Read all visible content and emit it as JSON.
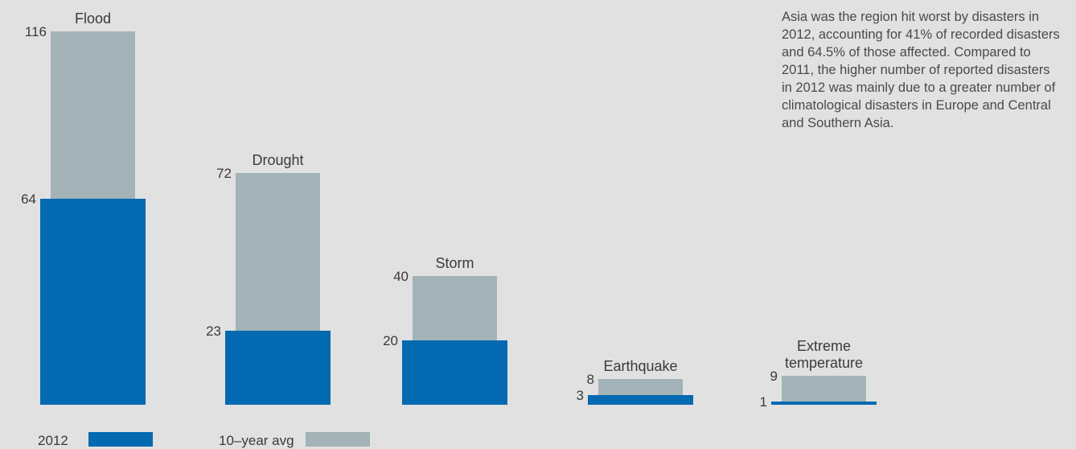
{
  "chart_data": {
    "type": "bar",
    "categories": [
      [
        "Flood"
      ],
      [
        "Drought"
      ],
      [
        "Storm"
      ],
      [
        "Earthquake"
      ],
      [
        "Extreme",
        "temperature"
      ]
    ],
    "series": [
      {
        "name": "10–year avg",
        "values": [
          116,
          72,
          40,
          8,
          9
        ]
      },
      {
        "name": "2012",
        "values": [
          64,
          23,
          20,
          3,
          1
        ]
      }
    ],
    "colors": {
      "2012": "#0369b1",
      "10–year avg": "#a3b3b7"
    },
    "legend": {
      "placement": "bottom-left"
    }
  },
  "annotation": "Asia was the region hit worst by disasters in 2012, accounting for 41% of recorded disasters and 64.5% of those affected. Compared to 2011, the higher number of reported disasters in 2012 was mainly due to a greater number of climatological disasters in Europe and Central and Southern Asia."
}
